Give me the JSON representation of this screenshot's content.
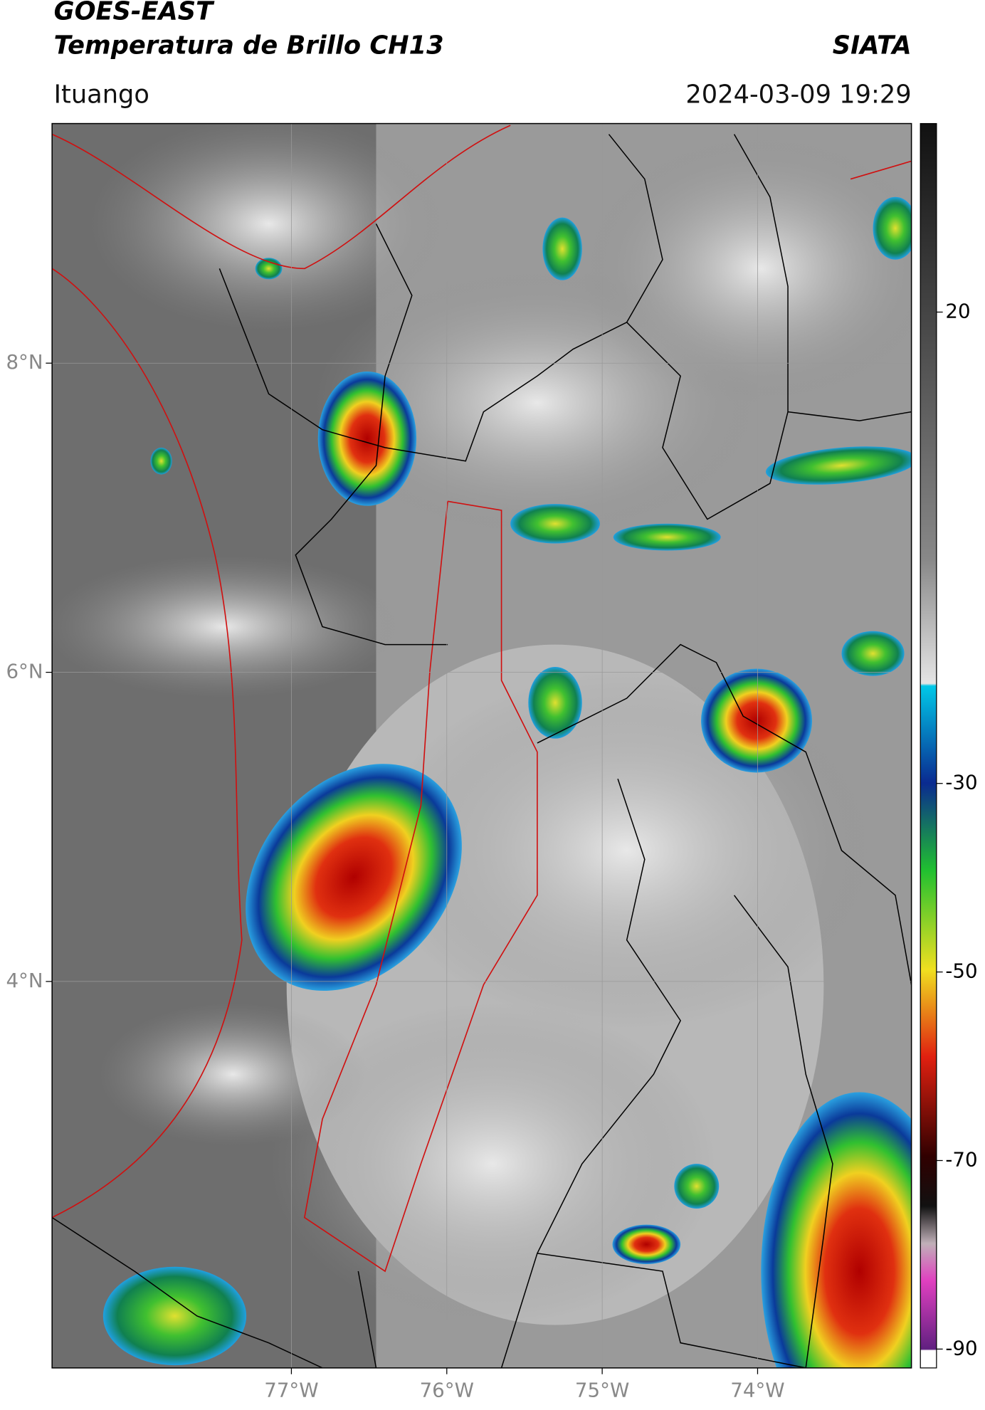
{
  "chart_data": {
    "type": "map",
    "title": "GOES-EAST",
    "subtitle": "Temperatura de Brillo CH13",
    "source": "SIATA",
    "location": "Ituango",
    "datetime": "2024-03-09 19:29",
    "xlim": [
      -78.54,
      -73.01
    ],
    "ylim": [
      1.5,
      9.55
    ],
    "xticks": [
      {
        "value": -77,
        "label": "77°W"
      },
      {
        "value": -76,
        "label": "76°W"
      },
      {
        "value": -75,
        "label": "75°W"
      },
      {
        "value": -74,
        "label": "74°W"
      }
    ],
    "yticks": [
      {
        "value": 8,
        "label": "8°N"
      },
      {
        "value": 6,
        "label": "6°N"
      },
      {
        "value": 4,
        "label": "4°N"
      }
    ],
    "grid": true,
    "colorbar": {
      "clim": [
        -92,
        40
      ],
      "ticks": [
        20,
        -30,
        -50,
        -70,
        -90
      ]
    }
  }
}
